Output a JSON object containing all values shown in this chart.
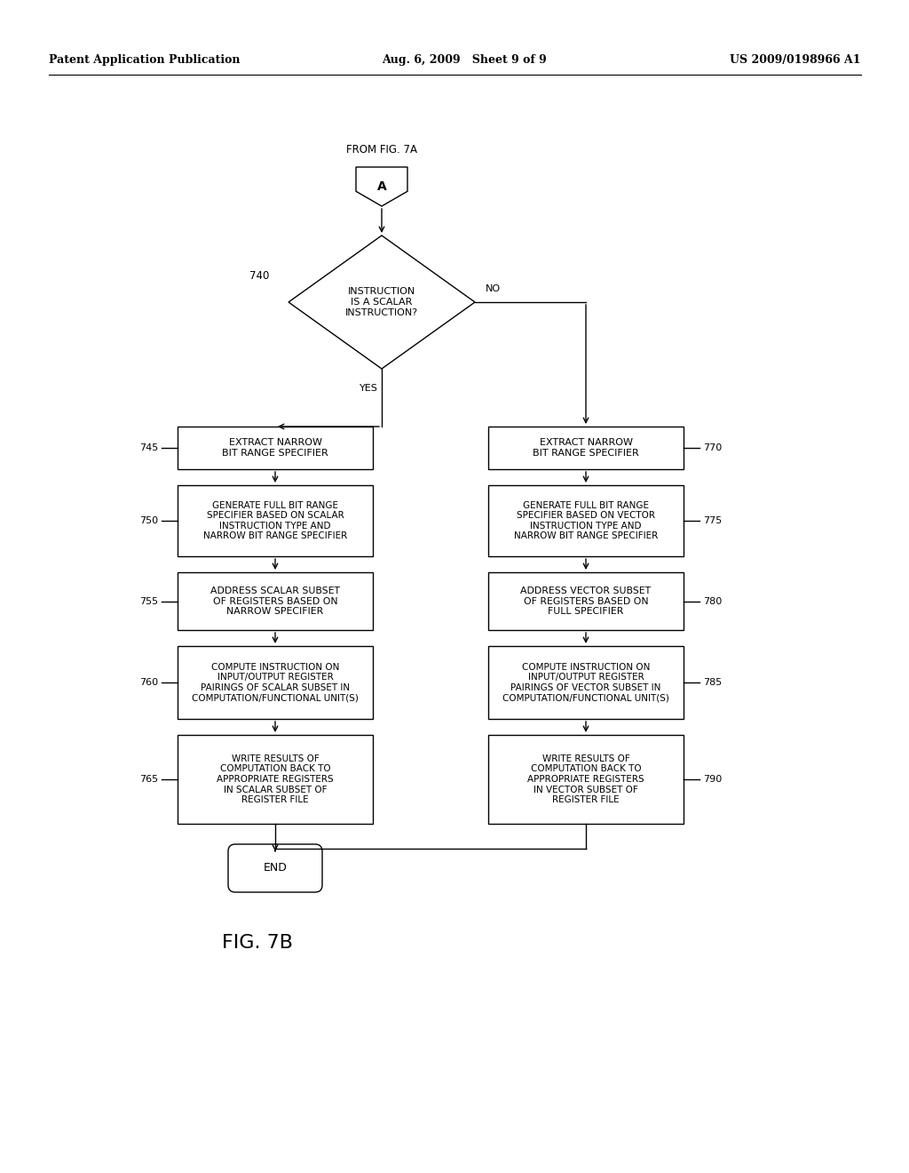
{
  "bg_color": "#ffffff",
  "header_left": "Patent Application Publication",
  "header_mid": "Aug. 6, 2009   Sheet 9 of 9",
  "header_right": "US 2009/0198966 A1",
  "fig_label": "FIG. 7B",
  "connector_label": "A",
  "connector_from": "FROM FIG. 7A",
  "diamond_label": "INSTRUCTION\nIS A SCALAR\nINSTRUCTION?",
  "diamond_step": "740",
  "yes_label": "YES",
  "no_label": "NO",
  "left_boxes": [
    {
      "step": "745",
      "text": "EXTRACT NARROW\nBIT RANGE SPECIFIER"
    },
    {
      "step": "750",
      "text": "GENERATE FULL BIT RANGE\nSPECIFIER BASED ON SCALAR\nINSTRUCTION TYPE AND\nNARROW BIT RANGE SPECIFIER"
    },
    {
      "step": "755",
      "text": "ADDRESS SCALAR SUBSET\nOF REGISTERS BASED ON\nNARROW SPECIFIER"
    },
    {
      "step": "760",
      "text": "COMPUTE INSTRUCTION ON\nINPUT/OUTPUT REGISTER\nPAIRINGS OF SCALAR SUBSET IN\nCOMPUTATION/FUNCTIONAL UNIT(S)"
    },
    {
      "step": "765",
      "text": "WRITE RESULTS OF\nCOMPUTATION BACK TO\nAPPROPRIATE REGISTERS\nIN SCALAR SUBSET OF\nREGISTER FILE"
    }
  ],
  "right_boxes": [
    {
      "step": "770",
      "text": "EXTRACT NARROW\nBIT RANGE SPECIFIER"
    },
    {
      "step": "775",
      "text": "GENERATE FULL BIT RANGE\nSPECIFIER BASED ON VECTOR\nINSTRUCTION TYPE AND\nNARROW BIT RANGE SPECIFIER"
    },
    {
      "step": "780",
      "text": "ADDRESS VECTOR SUBSET\nOF REGISTERS BASED ON\nFULL SPECIFIER"
    },
    {
      "step": "785",
      "text": "COMPUTE INSTRUCTION ON\nINPUT/OUTPUT REGISTER\nPAIRINGS OF VECTOR SUBSET IN\nCOMPUTATION/FUNCTIONAL UNIT(S)"
    },
    {
      "step": "790",
      "text": "WRITE RESULTS OF\nCOMPUTATION BACK TO\nAPPROPRIATE REGISTERS\nIN VECTOR SUBSET OF\nREGISTER FILE"
    }
  ],
  "end_label": "END"
}
